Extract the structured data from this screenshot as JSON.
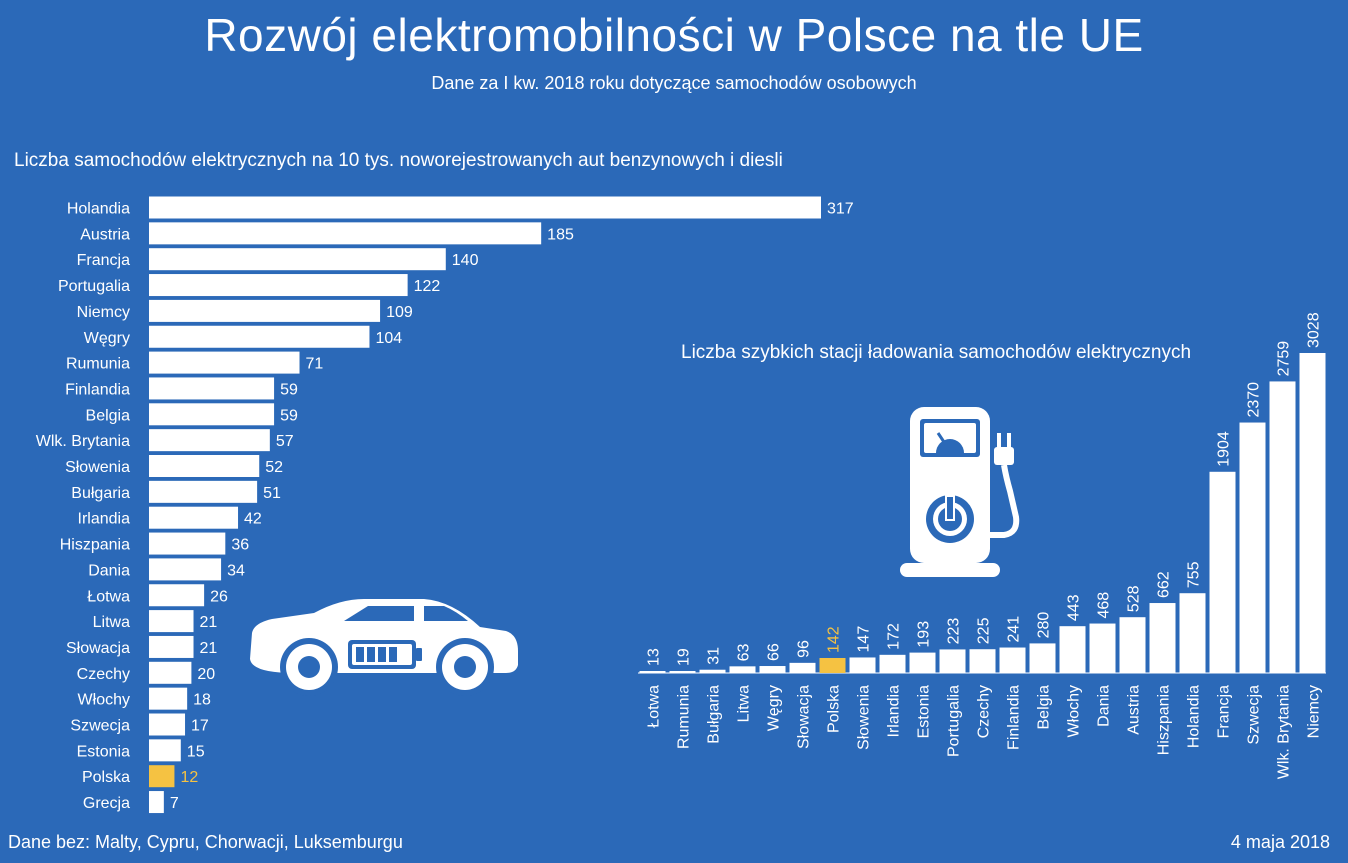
{
  "header": {
    "title": "Rozwój elektromobilności w Polsce na tle UE",
    "subtitle": "Dane za I kw. 2018 roku dotyczące samochodów osobowych"
  },
  "footer": {
    "note": "Dane bez: Malty, Cypru, Chorwacji, Luksemburgu",
    "date": "4 maja 2018"
  },
  "colors": {
    "background": "#2b69b8",
    "bar": "#ffffff",
    "highlight": "#f5c242"
  },
  "icons": [
    "car-battery-icon",
    "charging-station-icon"
  ],
  "chart_data": [
    {
      "type": "bar",
      "orientation": "horizontal",
      "title": "Liczba samochodów elektrycznych na 10 tys. noworejestrowanych aut benzynowych i diesli",
      "categories": [
        "Holandia",
        "Austria",
        "Francja",
        "Portugalia",
        "Niemcy",
        "Węgry",
        "Rumunia",
        "Finlandia",
        "Belgia",
        "Wlk. Brytania",
        "Słowenia",
        "Bułgaria",
        "Irlandia",
        "Hiszpania",
        "Dania",
        "Łotwa",
        "Litwa",
        "Słowacja",
        "Czechy",
        "Włochy",
        "Szwecja",
        "Estonia",
        "Polska",
        "Grecja"
      ],
      "values": [
        317,
        185,
        140,
        122,
        109,
        104,
        71,
        59,
        59,
        57,
        52,
        51,
        42,
        36,
        34,
        26,
        21,
        21,
        20,
        18,
        17,
        15,
        12,
        7
      ],
      "highlight": "Polska",
      "xlim": [
        0,
        317
      ],
      "grid": false,
      "legend": "none"
    },
    {
      "type": "bar",
      "orientation": "vertical",
      "title": "Liczba szybkich stacji ładowania samochodów elektrycznych",
      "categories": [
        "Łotwa",
        "Rumunia",
        "Bułgaria",
        "Litwa",
        "Węgry",
        "Słowacja",
        "Polska",
        "Słowenia",
        "Irlandia",
        "Estonia",
        "Portugalia",
        "Czechy",
        "Finlandia",
        "Belgia",
        "Włochy",
        "Dania",
        "Austria",
        "Hiszpania",
        "Holandia",
        "Francja",
        "Szwecja",
        "Wlk. Brytania",
        "Niemcy"
      ],
      "values": [
        13,
        19,
        31,
        63,
        66,
        96,
        142,
        147,
        172,
        193,
        223,
        225,
        241,
        280,
        443,
        468,
        528,
        662,
        755,
        1904,
        2370,
        2759,
        3028
      ],
      "highlight": "Polska",
      "ylim": [
        0,
        3028
      ],
      "grid": false,
      "legend": "none"
    }
  ]
}
